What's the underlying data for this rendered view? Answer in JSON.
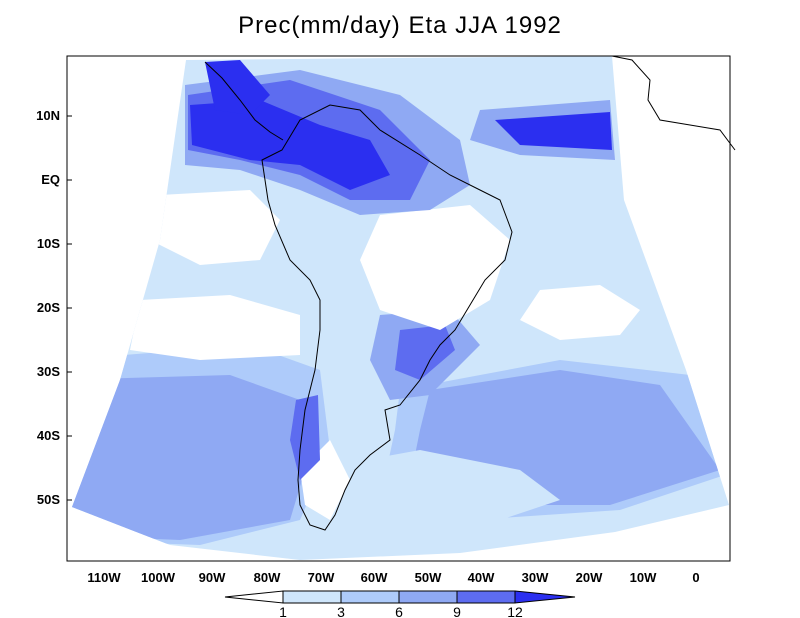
{
  "title": "Prec(mm/day) Eta JJA 1992",
  "colors": {
    "frame": "#000000",
    "coast": "#000000",
    "c_lt1": "#ffffff",
    "c_1_3": "#cfe6fb",
    "c_3_6": "#aecbfa",
    "c_6_9": "#8fa9f3",
    "c_9_12": "#5d6cf0",
    "c_gt12": "#2b2ff0"
  },
  "map": {
    "lat_labels": [
      "10N",
      "EQ",
      "10S",
      "20S",
      "30S",
      "40S",
      "50S"
    ],
    "lon_labels": [
      "110W",
      "100W",
      "90W",
      "80W",
      "70W",
      "60W",
      "50W",
      "40W",
      "30W",
      "20W",
      "10W",
      "0"
    ]
  },
  "colorbar": {
    "labels": [
      "1",
      "3",
      "6",
      "9",
      "12"
    ],
    "units": "mm/day"
  }
}
